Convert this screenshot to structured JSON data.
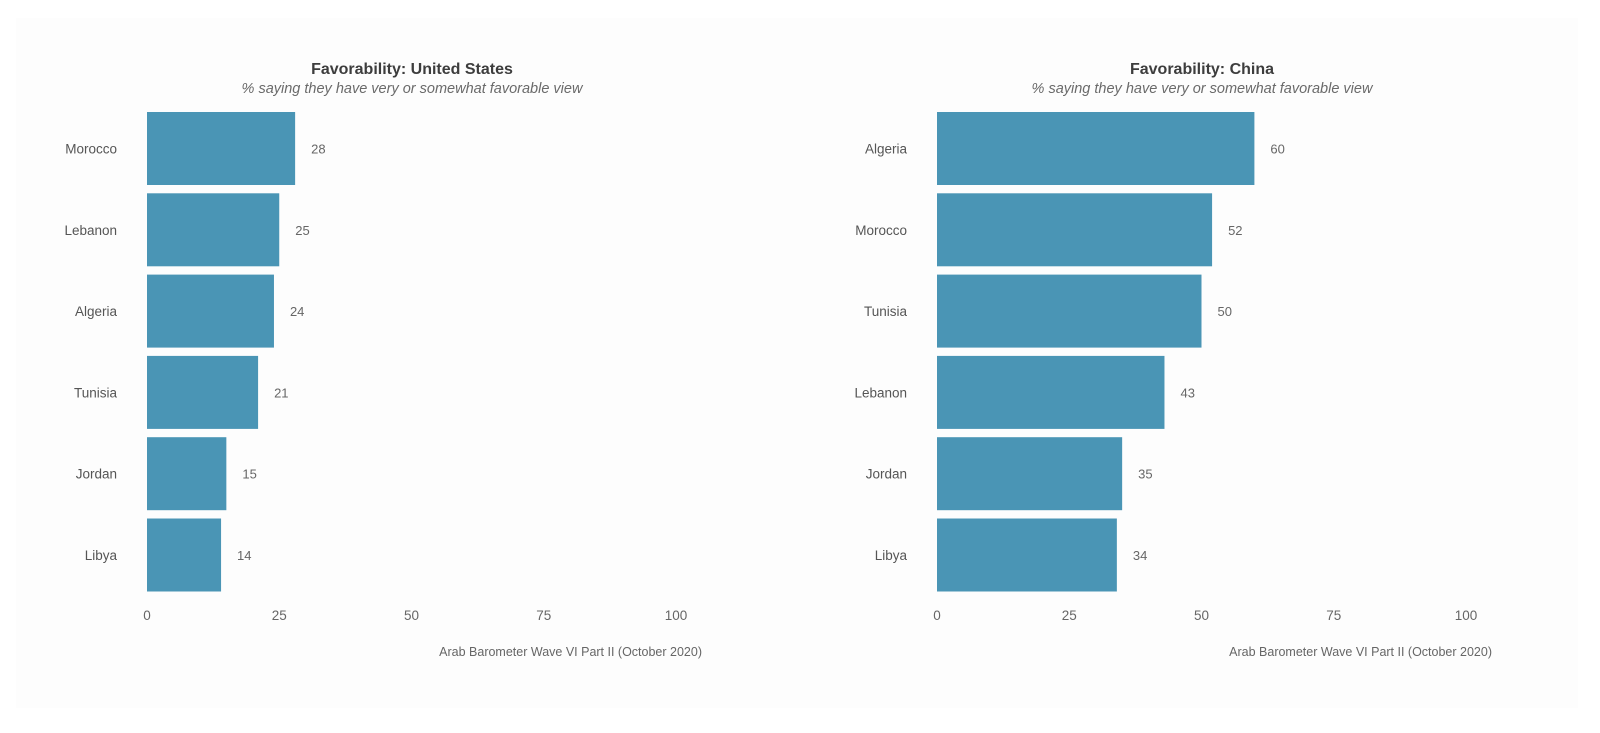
{
  "colors": {
    "bar": "#4a95b5",
    "background": "#fdfdfd"
  },
  "chart_data": [
    {
      "type": "bar",
      "orientation": "horizontal",
      "title": "Favorability: United States",
      "subtitle": "% saying they have very or somewhat favorable view",
      "categories": [
        "Morocco",
        "Lebanon",
        "Algeria",
        "Tunisia",
        "Jordan",
        "Libya"
      ],
      "values": [
        28,
        25,
        24,
        21,
        15,
        14
      ],
      "value_labels": [
        "28",
        "25",
        "24",
        "21",
        "15",
        "14"
      ],
      "xlim": [
        0,
        100
      ],
      "xticks": [
        0,
        25,
        50,
        75,
        100
      ],
      "xtick_labels": [
        "0",
        "25",
        "50",
        "75",
        "100"
      ],
      "caption": "Arab Barometer Wave VI Part II (October 2020)",
      "grid": false
    },
    {
      "type": "bar",
      "orientation": "horizontal",
      "title": "Favorability: China",
      "subtitle": "% saying they have very or somewhat favorable view",
      "categories": [
        "Algeria",
        "Morocco",
        "Tunisia",
        "Lebanon",
        "Jordan",
        "Libya"
      ],
      "values": [
        60,
        52,
        50,
        43,
        35,
        34
      ],
      "value_labels": [
        "60",
        "52",
        "50",
        "43",
        "35",
        "34"
      ],
      "xlim": [
        0,
        100
      ],
      "xticks": [
        0,
        25,
        50,
        75,
        100
      ],
      "xtick_labels": [
        "0",
        "25",
        "50",
        "75",
        "100"
      ],
      "caption": "Arab Barometer Wave VI Part II (October 2020)",
      "grid": false
    }
  ]
}
